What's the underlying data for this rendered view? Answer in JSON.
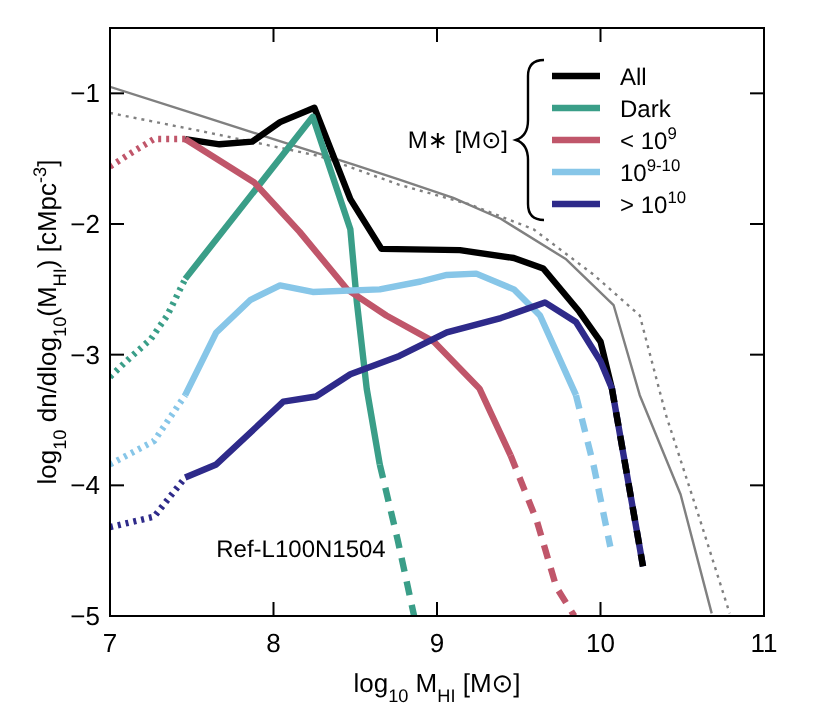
{
  "chart_data": {
    "type": "line",
    "xlabel": "log$_{10}$ M$_{HI}$ [M⊙]",
    "ylabel": "log$_{10}$ dn/dlog$_{10}$(M$_{HI}$) [cMpc$^{-3}$]",
    "legend_title": "M∗ [M⊙]",
    "legend": "top right",
    "annotations": [
      "Ref-L100N1504"
    ],
    "xlim": [
      7,
      11
    ],
    "xticks": [
      7,
      8,
      9,
      10,
      11
    ],
    "ylim": [
      -5,
      -0.5
    ],
    "yticks": [
      -5,
      -4,
      -3,
      -2,
      -1
    ],
    "series": [
      {
        "color": "#808080",
        "line_style": "solid",
        "x": [
          7.0,
          7.5,
          8.0,
          8.5,
          8.77,
          9.1,
          9.39,
          9.79,
          10.08,
          10.24,
          10.49,
          10.68
        ],
        "values": [
          -0.95,
          -1.15,
          -1.35,
          -1.55,
          -1.66,
          -1.8,
          -1.96,
          -2.27,
          -2.62,
          -3.31,
          -4.07,
          -4.98
        ]
      },
      {
        "color": "#808080",
        "line_style": "dotted",
        "x": [
          7.0,
          7.6,
          8.28,
          8.77,
          9.2,
          9.59,
          9.96,
          10.24,
          10.4,
          10.61,
          10.79
        ],
        "values": [
          -1.15,
          -1.3,
          -1.48,
          -1.7,
          -1.85,
          -2.04,
          -2.39,
          -2.7,
          -3.46,
          -4.27,
          -4.98
        ]
      },
      {
        "color": "#3a9e88",
        "line_style": "dotted",
        "x": [
          7.0,
          7.1,
          7.25,
          7.35,
          7.46
        ],
        "values": [
          -3.17,
          -3.05,
          -2.88,
          -2.7,
          -2.42
        ]
      },
      {
        "color": "#3a9e88",
        "line_style": "dashed",
        "x": [
          8.65,
          8.76,
          8.86
        ],
        "values": [
          -3.84,
          -4.42,
          -5.0
        ]
      },
      {
        "color": "#c0566a",
        "line_style": "dotted",
        "x": [
          7.0,
          7.15,
          7.27,
          7.46
        ],
        "values": [
          -1.56,
          -1.44,
          -1.35,
          -1.35
        ]
      },
      {
        "color": "#c0566a",
        "line_style": "dashed",
        "x": [
          9.45,
          9.61,
          9.73,
          9.84
        ],
        "values": [
          -3.77,
          -4.27,
          -4.78,
          -5.0
        ]
      },
      {
        "color": "#87c6e8",
        "line_style": "dotted",
        "x": [
          7.0,
          7.27,
          7.46
        ],
        "values": [
          -3.84,
          -3.66,
          -3.31
        ]
      },
      {
        "color": "#87c6e8",
        "line_style": "dashed",
        "x": [
          9.85,
          9.96,
          10.06
        ],
        "values": [
          -3.31,
          -3.86,
          -4.47
        ]
      },
      {
        "color": "#2e2a8a",
        "line_style": "dotted",
        "x": [
          7.0,
          7.27,
          7.46
        ],
        "values": [
          -4.32,
          -4.24,
          -3.94
        ]
      },
      {
        "name": "All",
        "color": "#000000",
        "line_style": "solid",
        "x": [
          7.46,
          7.67,
          7.87,
          8.04,
          8.25,
          8.47,
          8.66,
          9.14,
          9.47,
          9.65,
          9.87,
          10.0,
          10.07
        ],
        "values": [
          -1.35,
          -1.39,
          -1.37,
          -1.22,
          -1.11,
          -1.81,
          -2.19,
          -2.2,
          -2.26,
          -2.34,
          -2.67,
          -2.9,
          -3.26
        ]
      },
      {
        "name": "Dark",
        "color": "#3a9e88",
        "line_style": "solid",
        "x": [
          7.46,
          7.85,
          8.24,
          8.47,
          8.51,
          8.57,
          8.65
        ],
        "values": [
          -2.42,
          -1.8,
          -1.18,
          -2.04,
          -2.6,
          -3.26,
          -3.84
        ]
      },
      {
        "name": "< 10$^{9}$",
        "color": "#c0566a",
        "line_style": "solid",
        "x": [
          7.46,
          7.88,
          8.16,
          8.45,
          8.69,
          8.98,
          9.26,
          9.45
        ],
        "values": [
          -1.35,
          -1.68,
          -2.06,
          -2.5,
          -2.7,
          -2.9,
          -3.26,
          -3.77
        ]
      },
      {
        "name": "10$^{9-10}$",
        "color": "#87c6e8",
        "line_style": "solid",
        "x": [
          7.46,
          7.65,
          7.86,
          8.04,
          8.24,
          8.65,
          8.9,
          9.06,
          9.24,
          9.47,
          9.63,
          9.85
        ],
        "values": [
          -3.31,
          -2.83,
          -2.58,
          -2.47,
          -2.52,
          -2.5,
          -2.44,
          -2.39,
          -2.38,
          -2.5,
          -2.7,
          -3.31
        ]
      },
      {
        "name": "> 10$^{10}$",
        "color": "#2e2a8a",
        "line_style": "solid",
        "x": [
          7.46,
          7.65,
          8.06,
          8.26,
          8.47,
          8.77,
          9.06,
          9.39,
          9.66,
          9.85,
          10.0,
          10.07,
          10.26
        ],
        "values": [
          -3.94,
          -3.84,
          -3.36,
          -3.32,
          -3.15,
          -3.01,
          -2.83,
          -2.72,
          -2.6,
          -2.75,
          -3.05,
          -3.26,
          -4.62
        ]
      },
      {
        "color": "#000000",
        "line_style": "dashed",
        "x": [
          10.07,
          10.26
        ],
        "values": [
          -3.26,
          -4.62
        ]
      }
    ]
  }
}
